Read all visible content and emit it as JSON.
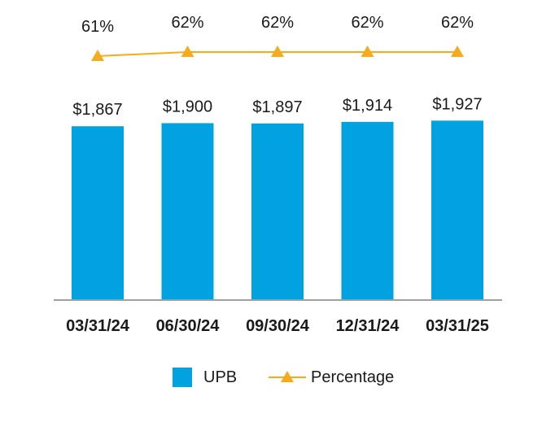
{
  "chart_data": {
    "type": "bar",
    "categories": [
      "03/31/24",
      "06/30/24",
      "09/30/24",
      "12/31/24",
      "03/31/25"
    ],
    "series": [
      {
        "name": "UPB",
        "type": "bar",
        "values": [
          1867,
          1900,
          1897,
          1914,
          1927
        ],
        "labels": [
          "$1,867",
          "$1,900",
          "$1,897",
          "$1,914",
          "$1,927"
        ],
        "color": "#00a3e0"
      },
      {
        "name": "Percentage",
        "type": "line",
        "values": [
          61,
          62,
          62,
          62,
          62
        ],
        "labels": [
          "61%",
          "62%",
          "62%",
          "62%",
          "62%"
        ],
        "color": "#f5ab1c",
        "marker": "triangle"
      }
    ],
    "ylim": [
      0,
      2000
    ],
    "grid": false,
    "legend_position": "bottom"
  }
}
